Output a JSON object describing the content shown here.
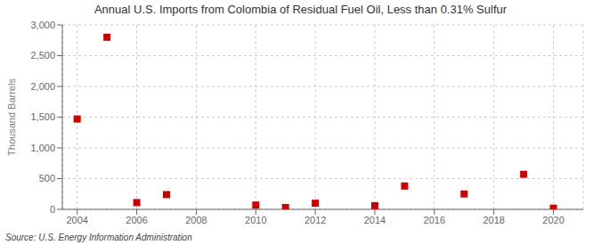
{
  "chart_data": {
    "type": "scatter",
    "title": "Annual U.S. Imports from Colombia of Residual Fuel Oil, Less than 0.31% Sulfur",
    "ylabel": "Thousand Barrels",
    "annotations": [
      "Source: U.S. Energy Information Administration"
    ],
    "x": [
      2004,
      2005,
      2006,
      2007,
      2010,
      2011,
      2012,
      2014,
      2015,
      2017,
      2019,
      2020
    ],
    "values": [
      1470,
      2800,
      110,
      240,
      70,
      30,
      100,
      60,
      380,
      250,
      570,
      20
    ],
    "color": "#cc0000",
    "marker": "square",
    "xlim": [
      2003.5,
      2021.0
    ],
    "ylim": [
      0,
      3000
    ],
    "xticks": [
      2004,
      2006,
      2008,
      2010,
      2012,
      2014,
      2016,
      2018,
      2020
    ],
    "yticks": [
      0,
      500,
      {
        "value": 1000,
        "label": "1,000"
      },
      {
        "value": 1500,
        "label": "1,500"
      },
      {
        "value": 2000,
        "label": "2,000"
      },
      {
        "value": 2500,
        "label": "2,500"
      },
      {
        "value": 3000,
        "label": "3,000"
      }
    ],
    "grid": true
  }
}
